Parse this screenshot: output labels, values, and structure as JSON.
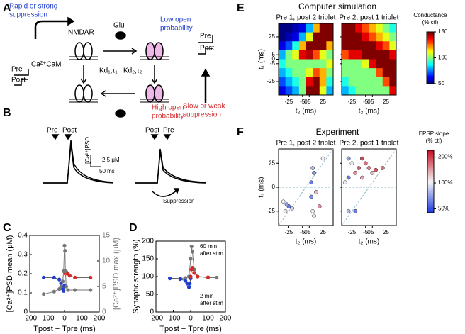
{
  "panel_labels": [
    "A",
    "B",
    "C",
    "D",
    "E",
    "F"
  ],
  "diagram_a": {
    "rapid": "Rapid or strong",
    "rapid2": "suppression",
    "glu": "Glu",
    "low": "Low open",
    "low2": "probability",
    "nmdar": "NMDAR",
    "cacam": "Ca²⁺CaM",
    "kd1": "Kd₁,τ₁",
    "kd2": "Kd₂,τ₂",
    "high": "High open",
    "high2": "probability",
    "slow": "Slow or weak",
    "slow2": "suppression",
    "pre_left": "Pre",
    "post_left": "Post",
    "pre_right": "Pre",
    "post_right": "Post"
  },
  "diagram_b": {
    "pre1": "Pre",
    "post1": "Post",
    "ca": "[Ca²⁺]PSD",
    "scale_y": "2.5 μM",
    "scale_x": "50 ms",
    "post2": "Post",
    "pre2": "Pre",
    "suppression": "Suppression"
  },
  "chart_data": [
    {
      "type": "line",
      "xlabel": "Tpost − Tpre (ms)",
      "ylabel": "[Ca²⁺]PSD mean (μM)",
      "y2label": "[Ca²⁺]PSD max (μM)",
      "xlim": [
        -200,
        200
      ],
      "xticks": [
        -200,
        -100,
        0,
        100,
        200
      ],
      "ylim": [
        0,
        0.4
      ],
      "yticks": [
        0,
        0.1,
        0.2,
        0.3,
        0.4
      ],
      "y2lim": [
        0,
        15
      ],
      "y2ticks": [
        0,
        5,
        10,
        15
      ],
      "series": [
        {
          "color": "#1f3fd0",
          "x": [
            -120,
            -60,
            -30,
            -20,
            -15,
            -10,
            -5,
            0
          ],
          "values": [
            0.18,
            0.18,
            0.17,
            0.15,
            0.13,
            0.12,
            0.11,
            0.14
          ]
        },
        {
          "color": "#d42a2a",
          "x": [
            5,
            10,
            20,
            30,
            60,
            150
          ],
          "values": [
            0.2,
            0.21,
            0.2,
            0.19,
            0.18,
            0.18
          ]
        },
        {
          "color": "#777777",
          "axis": "y2",
          "x": [
            -120,
            -60,
            -30,
            -20,
            -10,
            -5,
            0,
            3,
            5,
            10,
            20,
            60,
            150
          ],
          "values": [
            3.5,
            4,
            4.5,
            5,
            6,
            8,
            13,
            12,
            8,
            5,
            4.3,
            4.3,
            4.3
          ]
        }
      ]
    },
    {
      "type": "line",
      "xlabel": "Tpost − Tpre (ms)",
      "ylabel": "Synaptic strength (%)",
      "xlim": [
        -200,
        200
      ],
      "xticks": [
        -200,
        -100,
        0,
        100,
        200
      ],
      "ylim": [
        0,
        200
      ],
      "yticks": [
        0,
        50,
        100,
        150,
        200
      ],
      "annotations": [
        "60 min",
        "after stim",
        "2 min",
        "after stim"
      ],
      "series": [
        {
          "color": "#777777",
          "x": [
            -120,
            -60,
            -30,
            -10,
            0,
            5,
            10,
            20,
            40,
            100,
            150
          ],
          "values": [
            95,
            95,
            96,
            100,
            150,
            185,
            170,
            120,
            100,
            97,
            97
          ]
        },
        {
          "color": "#1f3fd0",
          "x": [
            -120,
            -60,
            -30,
            -20,
            -10,
            -5,
            0
          ],
          "values": [
            95,
            93,
            88,
            80,
            70,
            80,
            95
          ]
        },
        {
          "color": "#d42a2a",
          "x": [
            0,
            5,
            10,
            20,
            40,
            100
          ],
          "values": [
            100,
            120,
            125,
            110,
            100,
            98
          ]
        }
      ]
    },
    {
      "type": "heatmap",
      "title": "Computer simulation",
      "colorbar_title": [
        "Conductance",
        "(% ctl)"
      ],
      "xlabel": "t₂ (ms)",
      "ylabel": "t₁ (ms)",
      "xlim": [
        -40,
        40
      ],
      "ylim": [
        -40,
        40
      ],
      "xticks": [
        -25,
        -5,
        0,
        5,
        25
      ],
      "yticks": [
        -25,
        -5,
        0,
        5,
        25
      ],
      "zlim": [
        50,
        150
      ],
      "zticks": [
        50,
        100,
        150
      ],
      "x": [
        -35,
        -25,
        -15,
        -5,
        5,
        15,
        25,
        35
      ],
      "y": [
        35,
        25,
        15,
        5,
        -5,
        -15,
        -25,
        -35
      ],
      "panels": [
        {
          "title": "Pre 1, post 2 triplet",
          "z": [
            [
              50,
              50,
              55,
              60,
              80,
              120,
              150,
              150
            ],
            [
              50,
              55,
              60,
              80,
              110,
              150,
              150,
              150
            ],
            [
              60,
              70,
              90,
              120,
              150,
              150,
              150,
              120
            ],
            [
              80,
              100,
              110,
              140,
              145,
              130,
              110,
              100
            ],
            [
              90,
              100,
              100,
              100,
              100,
              100,
              100,
              110
            ],
            [
              80,
              90,
              100,
              100,
              110,
              130,
              120,
              100
            ],
            [
              70,
              80,
              90,
              100,
              140,
              150,
              120,
              90
            ],
            [
              60,
              70,
              80,
              100,
              150,
              150,
              110,
              80
            ]
          ]
        },
        {
          "title": "Pre 2, post 1 triplet",
          "z": [
            [
              150,
              150,
              140,
              130,
              120,
              110,
              100,
              90
            ],
            [
              150,
              150,
              150,
              140,
              130,
              120,
              110,
              100
            ],
            [
              150,
              150,
              150,
              150,
              150,
              140,
              130,
              110
            ],
            [
              130,
              140,
              140,
              150,
              150,
              150,
              150,
              140
            ],
            [
              100,
              100,
              100,
              110,
              140,
              150,
              150,
              150
            ],
            [
              100,
              100,
              100,
              100,
              100,
              130,
              150,
              150
            ],
            [
              90,
              100,
              100,
              100,
              100,
              100,
              130,
              150
            ],
            [
              80,
              90,
              100,
              100,
              100,
              100,
              100,
              140
            ]
          ]
        }
      ]
    },
    {
      "type": "scatter",
      "title": "Experiment",
      "colorbar_title": [
        "EPSP slope",
        "(% ctl)"
      ],
      "xlabel": "t₂ (ms)",
      "ylabel": "t₁ (ms)",
      "xlim": [
        -40,
        40
      ],
      "ylim": [
        -40,
        40
      ],
      "xticks": [
        -25,
        -5,
        0,
        5,
        25
      ],
      "yticks": [
        -25,
        0,
        25
      ],
      "zlim": [
        45,
        240
      ],
      "log_color": true,
      "zticks": [
        {
          "value": 50,
          "label": "50%"
        },
        {
          "value": 100,
          "label": "100%"
        },
        {
          "value": 200,
          "label": "200%"
        }
      ],
      "panels": [
        {
          "title": "Pre 1, post 2 triplet",
          "x": [
            -30,
            -25,
            -28,
            -20,
            -33,
            10,
            8,
            12,
            15,
            10,
            12,
            20,
            25,
            8
          ],
          "y": [
            -25,
            -20,
            -18,
            -22,
            -15,
            20,
            5,
            15,
            -5,
            -25,
            -30,
            -20,
            30,
            -10
          ],
          "values": [
            110,
            60,
            70,
            90,
            100,
            80,
            60,
            70,
            130,
            100,
            110,
            150,
            100,
            65
          ]
        },
        {
          "title": "Pre 2, post 1 triplet",
          "x": [
            -30,
            -25,
            -20,
            -15,
            -10,
            -5,
            0,
            5,
            10,
            -30,
            -35,
            -20,
            -30,
            20,
            -10
          ],
          "y": [
            30,
            25,
            15,
            20,
            30,
            25,
            20,
            15,
            18,
            10,
            5,
            -25,
            -25,
            20,
            10
          ],
          "values": [
            70,
            100,
            150,
            180,
            200,
            170,
            160,
            130,
            190,
            60,
            100,
            60,
            80,
            170,
            140
          ]
        }
      ]
    }
  ]
}
